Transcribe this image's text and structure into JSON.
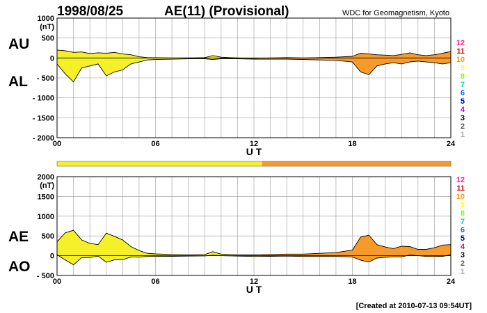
{
  "header": {
    "date": "1998/08/25",
    "title": "AE(11) (Provisional)",
    "source": "WDC for Geomagnetism, Kyoto"
  },
  "footer": {
    "created": "[Created at 2010-07-13 09:54UT]"
  },
  "legend": {
    "levels": [
      "12",
      "11",
      "10",
      "9",
      "8",
      "7",
      "6",
      "5",
      "4",
      "3",
      "2",
      "1"
    ],
    "colors": [
      "#ff1a8c",
      "#cc0000",
      "#ff9900",
      "#ffff00",
      "#80ff00",
      "#00cccc",
      "#0066ff",
      "#000099",
      "#cc00cc",
      "#000000",
      "#555555",
      "#aaaaaa"
    ]
  },
  "colors": {
    "yellow": "#f5f028",
    "orange": "#f79a2a"
  },
  "station_bar": {
    "segments": [
      {
        "from": 0,
        "to": 12.5,
        "level": "9",
        "color": "#f5f028"
      },
      {
        "from": 12.5,
        "to": 24,
        "level": "10",
        "color": "#f79a2a"
      }
    ]
  },
  "chart_data": [
    {
      "type": "area",
      "yunit": "(nT)",
      "xlabel": "U T",
      "xlim": [
        0,
        24
      ],
      "ylim": [
        -2000,
        1000
      ],
      "ytick_labels": [
        "1000",
        "500",
        "0",
        "- 500",
        "- 1000",
        "- 1500",
        "- 2000"
      ],
      "yticks": [
        1000,
        500,
        0,
        -500,
        -1000,
        -1500,
        -2000
      ],
      "xtick_labels": [
        "00",
        "06",
        "12",
        "18",
        "24"
      ],
      "xticks": [
        0,
        6,
        12,
        18,
        24
      ],
      "grid": true,
      "series": [
        {
          "name": "AU",
          "x": [
            0,
            0.5,
            1,
            1.5,
            2,
            2.5,
            3,
            3.5,
            4,
            4.5,
            5,
            5.5,
            6,
            7,
            8,
            9,
            9.5,
            10,
            11,
            12,
            13,
            14,
            15,
            16,
            17,
            18,
            18.5,
            19,
            19.5,
            20,
            20.5,
            21,
            21.5,
            22,
            22.5,
            23,
            23.5,
            24
          ],
          "y": [
            200,
            180,
            140,
            150,
            110,
            130,
            120,
            140,
            100,
            80,
            30,
            10,
            5,
            0,
            0,
            10,
            60,
            20,
            0,
            -10,
            0,
            10,
            0,
            10,
            20,
            40,
            120,
            100,
            80,
            70,
            60,
            90,
            130,
            80,
            60,
            80,
            120,
            160
          ]
        },
        {
          "name": "AL",
          "x": [
            0,
            0.5,
            1,
            1.5,
            2,
            2.5,
            3,
            3.5,
            4,
            4.5,
            5,
            5.5,
            6,
            7,
            8,
            9,
            9.5,
            10,
            11,
            12,
            13,
            14,
            15,
            16,
            17,
            18,
            18.5,
            19,
            19.5,
            20,
            20.5,
            21,
            21.5,
            22,
            22.5,
            23,
            23.5,
            24
          ],
          "y": [
            -150,
            -400,
            -600,
            -250,
            -200,
            -150,
            -450,
            -350,
            -300,
            -150,
            -100,
            -50,
            -40,
            -30,
            -20,
            -20,
            -40,
            -20,
            -20,
            -30,
            -30,
            -30,
            -40,
            -50,
            -60,
            -100,
            -350,
            -420,
            -200,
            -150,
            -120,
            -150,
            -100,
            -80,
            -100,
            -120,
            -150,
            -120
          ]
        }
      ],
      "side_labels": [
        "AU",
        "AL"
      ]
    },
    {
      "type": "area",
      "yunit": "(nT)",
      "xlabel": "U T",
      "xlim": [
        0,
        24
      ],
      "ylim": [
        -500,
        2000
      ],
      "ytick_labels": [
        "2000",
        "1500",
        "1000",
        "500",
        "0",
        "- 500"
      ],
      "yticks": [
        2000,
        1500,
        1000,
        500,
        0,
        -500
      ],
      "xtick_labels": [
        "00",
        "06",
        "12",
        "18",
        "24"
      ],
      "xticks": [
        0,
        6,
        12,
        18,
        24
      ],
      "grid": true,
      "series": [
        {
          "name": "AE",
          "x": [
            0,
            0.5,
            1,
            1.5,
            2,
            2.5,
            3,
            3.5,
            4,
            4.5,
            5,
            5.5,
            6,
            7,
            8,
            9,
            9.5,
            10,
            11,
            12,
            13,
            14,
            15,
            16,
            17,
            18,
            18.5,
            19,
            19.5,
            20,
            20.5,
            21,
            21.5,
            22,
            22.5,
            23,
            23.5,
            24
          ],
          "y": [
            350,
            580,
            640,
            400,
            310,
            280,
            570,
            490,
            400,
            230,
            130,
            60,
            45,
            30,
            20,
            30,
            100,
            40,
            20,
            20,
            30,
            40,
            40,
            60,
            80,
            140,
            470,
            520,
            280,
            220,
            180,
            240,
            230,
            160,
            160,
            200,
            270,
            280
          ]
        },
        {
          "name": "AO",
          "x": [
            0,
            0.5,
            1,
            1.5,
            2,
            2.5,
            3,
            3.5,
            4,
            4.5,
            5,
            5.5,
            6,
            7,
            8,
            9,
            9.5,
            10,
            11,
            12,
            13,
            14,
            15,
            16,
            17,
            18,
            18.5,
            19,
            19.5,
            20,
            20.5,
            21,
            21.5,
            22,
            22.5,
            23,
            23.5,
            24
          ],
          "y": [
            25,
            -110,
            -230,
            -50,
            -45,
            -10,
            -165,
            -105,
            -100,
            -35,
            -35,
            -20,
            -18,
            -15,
            -10,
            -5,
            10,
            0,
            -10,
            -20,
            -15,
            -10,
            -20,
            -20,
            -20,
            -30,
            -115,
            -160,
            -60,
            -40,
            -30,
            -30,
            15,
            0,
            -20,
            -20,
            -15,
            20
          ]
        }
      ],
      "side_labels": [
        "AE",
        "AO"
      ]
    }
  ]
}
